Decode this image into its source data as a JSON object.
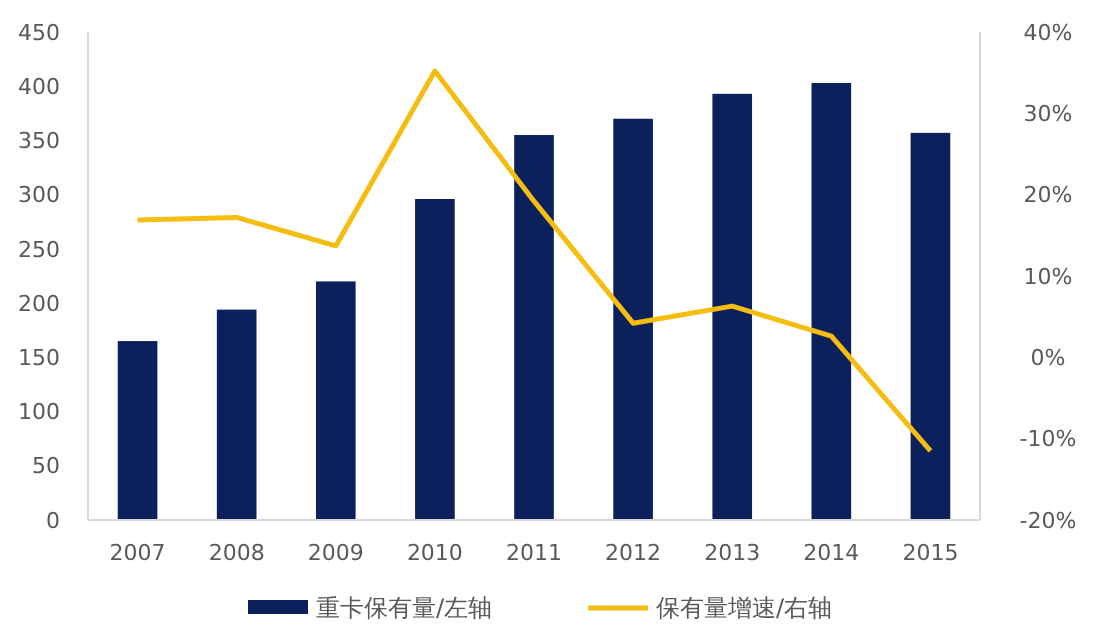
{
  "chart_data": {
    "type": "bar",
    "categories": [
      "2007",
      "2008",
      "2009",
      "2010",
      "2011",
      "2012",
      "2013",
      "2014",
      "2015"
    ],
    "series": [
      {
        "name": "重卡保有量/左轴",
        "color": "#0c215c",
        "values": [
          165,
          194,
          220,
          296,
          355,
          370,
          393,
          403,
          357
        ]
      },
      {
        "name": "保有量增速/右轴",
        "type": "line",
        "axis": "y2",
        "color": "#f5bd0f",
        "values": [
          16.9,
          17.2,
          13.7,
          35.2,
          19.2,
          4.2,
          6.3,
          2.6,
          -11.5
        ]
      }
    ],
    "ylim": [
      0,
      450
    ],
    "yticks": [
      0,
      50,
      100,
      150,
      200,
      250,
      300,
      350,
      400,
      450
    ],
    "y2lim": [
      -20,
      40
    ],
    "y2ticks": [
      {
        "value": -20,
        "label": "-20%"
      },
      {
        "value": -10,
        "label": "-10%"
      },
      {
        "value": 0,
        "label": "0%"
      },
      {
        "value": 10,
        "label": "10%"
      },
      {
        "value": 20,
        "label": "20%"
      },
      {
        "value": 30,
        "label": "30%"
      },
      {
        "value": 40,
        "label": "40%"
      }
    ],
    "legend": "bottom",
    "marker": "none"
  }
}
